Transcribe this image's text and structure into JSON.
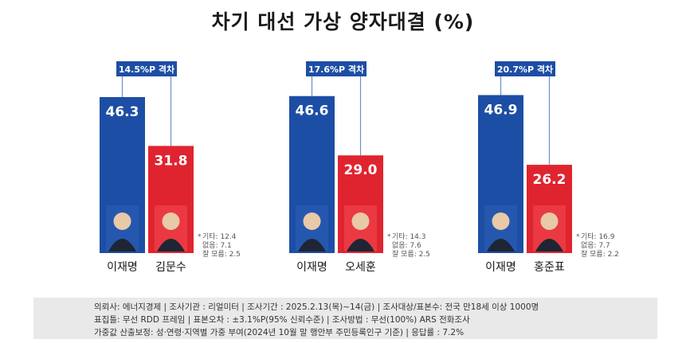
{
  "title": "차기 대선 가상 양자대결 (%)",
  "chart_data": [
    {
      "type": "bar",
      "categories": [
        "이재명",
        "김문수"
      ],
      "values": [
        46.3,
        31.8
      ],
      "gap_label": "14.5%P 격차",
      "notes": [
        "기타: 12.4",
        "없음: 7.1",
        "잘 모름: 2.5"
      ]
    },
    {
      "type": "bar",
      "categories": [
        "이재명",
        "오세훈"
      ],
      "values": [
        46.6,
        29.0
      ],
      "gap_label": "17.6%P 격차",
      "notes": [
        "기타: 14.3",
        "없음: 7.6",
        "잘 모름: 2.5"
      ]
    },
    {
      "type": "bar",
      "categories": [
        "이재명",
        "홍준표"
      ],
      "values": [
        46.9,
        26.2
      ],
      "gap_label": "20.7%P 격차",
      "notes": [
        "기타: 16.9",
        "없음: 7.7",
        "잘 모름: 2.2"
      ]
    }
  ],
  "colors": {
    "left_party": "#1d4ea5",
    "right_party": "#e0242f",
    "footer_bg": "#e9e9e9"
  },
  "footer": {
    "line1": "의뢰사: 에너지경제  | 조사기관 : 리얼미터   | 조사기간 : 2025.2.13(목)~14(금) | 조사대상/표본수:  전국 만18세 이상 1000명",
    "line2": "표집틀: 무선 RDD 프레임 | 표본오차 : ±3.1%P(95% 신뢰수준) | 조사방법 : 무선(100%) ARS 전화조사",
    "line3": "가중값 산출보정: 성·연령·지역별 가중 부여(2024년 10월 말 행안부 주민등록인구 기준) | 응답률 : 7.2%"
  }
}
